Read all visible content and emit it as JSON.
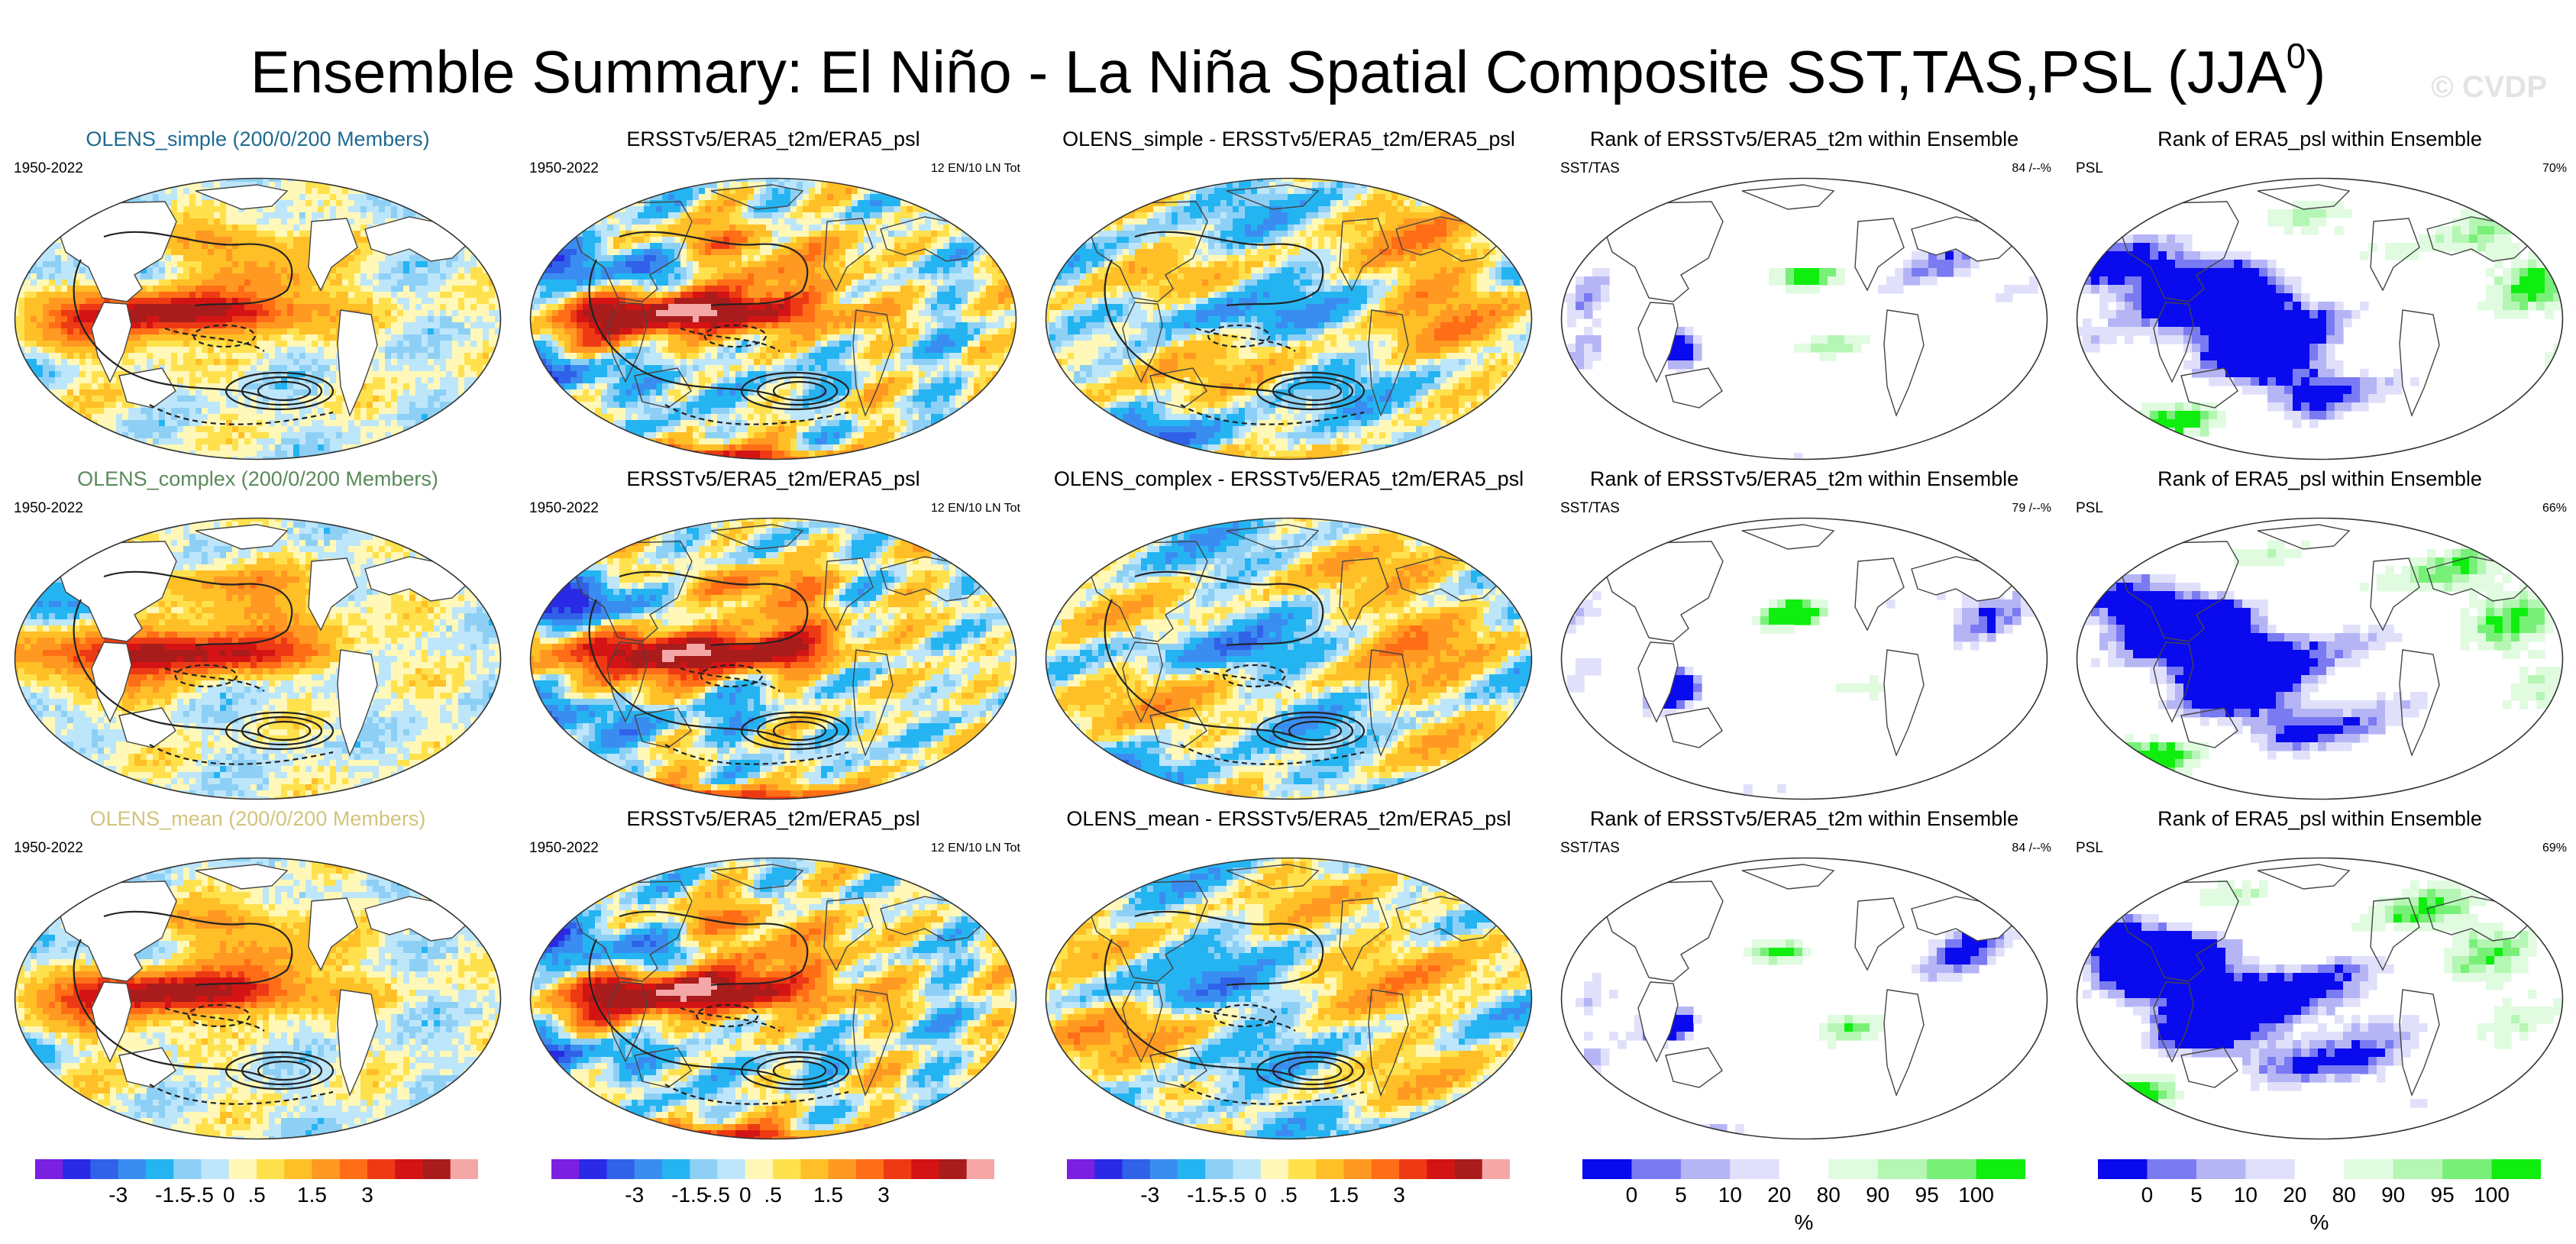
{
  "title": "Ensemble Summary: El Niño - La Niña Spatial Composite SST,TAS,PSL (JJA",
  "title_superscript": "0",
  "title_suffix": ")",
  "watermark": "© CVDP",
  "colors": {
    "anom": [
      "#7b1fe0",
      "#2a2ae6",
      "#2f62e8",
      "#3a8df0",
      "#25b4f2",
      "#8ed0f5",
      "#bde6fb",
      "#fff8b8",
      "#ffe14d",
      "#ffbf26",
      "#ff9922",
      "#ff6e16",
      "#ee3a14",
      "#d41414",
      "#a81c1c",
      "#f5a7a7"
    ],
    "rank": [
      "#0a0aee",
      "#7a7af2",
      "#b5b5f6",
      "#e0e0fb",
      "#ffffff",
      "#e0fbe0",
      "#b5f6b5",
      "#78f078",
      "#10ee10"
    ]
  },
  "colorbars": {
    "anom": {
      "labels": [
        "-3",
        "-1.5",
        "-.5",
        "0",
        ".5",
        "1.5",
        "3"
      ]
    },
    "rank": {
      "labels": [
        "0",
        "5",
        "10",
        "20",
        "80",
        "90",
        "95",
        "100"
      ],
      "unit": "%"
    }
  },
  "rows": [
    {
      "model": {
        "title": "OLENS_simple (200/0/200 Members)",
        "title_color": "#1f6a8f",
        "left": "1950-2022"
      },
      "obs": {
        "title": "ERSSTv5/ERA5_t2m/ERA5_psl",
        "left": "1950-2022",
        "right": "12 EN/10 LN Tot"
      },
      "diff": {
        "title": "OLENS_simple - ERSSTv5/ERA5_t2m/ERA5_psl"
      },
      "rank_sst": {
        "title": "Rank of ERSSTv5/ERA5_t2m within Ensemble",
        "left": "SST/TAS",
        "right": "84 /--%"
      },
      "rank_psl": {
        "title": "Rank of ERA5_psl within Ensemble",
        "left": "PSL",
        "right": "70%"
      }
    },
    {
      "model": {
        "title": "OLENS_complex (200/0/200 Members)",
        "title_color": "#5a8a5a",
        "left": "1950-2022"
      },
      "obs": {
        "title": "ERSSTv5/ERA5_t2m/ERA5_psl",
        "left": "1950-2022",
        "right": "12 EN/10 LN Tot"
      },
      "diff": {
        "title": "OLENS_complex - ERSSTv5/ERA5_t2m/ERA5_psl"
      },
      "rank_sst": {
        "title": "Rank of ERSSTv5/ERA5_t2m within Ensemble",
        "left": "SST/TAS",
        "right": "79 /--%"
      },
      "rank_psl": {
        "title": "Rank of ERA5_psl within Ensemble",
        "left": "PSL",
        "right": "66%"
      }
    },
    {
      "model": {
        "title": "OLENS_mean (200/0/200 Members)",
        "title_color": "#d2c47c",
        "left": "1950-2022"
      },
      "obs": {
        "title": "ERSSTv5/ERA5_t2m/ERA5_psl",
        "left": "1950-2022",
        "right": "12 EN/10 LN Tot"
      },
      "diff": {
        "title": "OLENS_mean - ERSSTv5/ERA5_t2m/ERA5_psl"
      },
      "rank_sst": {
        "title": "Rank of ERSSTv5/ERA5_t2m within Ensemble",
        "left": "SST/TAS",
        "right": "84 /--%"
      },
      "rank_psl": {
        "title": "Rank of ERA5_psl within Ensemble",
        "left": "PSL",
        "right": "69%"
      }
    }
  ],
  "chart_data": {
    "type": "heatmap",
    "title": "Ensemble Summary: El Niño - La Niña Spatial Composite SST,TAS,PSL (JJA0)",
    "panel_types": [
      "model composite",
      "observed composite",
      "model - observed",
      "rank SST/TAS",
      "rank PSL"
    ],
    "anomaly_colorbar_ticks": [
      -3,
      -1.5,
      -0.5,
      0,
      0.5,
      1.5,
      3
    ],
    "rank_colorbar_ticks": [
      0,
      5,
      10,
      20,
      80,
      90,
      95,
      100
    ],
    "rank_unit": "%",
    "rank_sst_pct": [
      84,
      79,
      84
    ],
    "rank_psl_pct": [
      70,
      66,
      69
    ],
    "period": "1950-2022",
    "events": "12 EN/10 LN Tot"
  }
}
